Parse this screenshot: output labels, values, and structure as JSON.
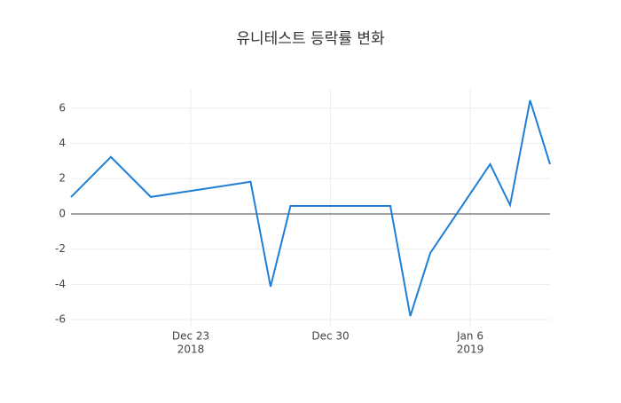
{
  "chart_data": {
    "type": "line",
    "title": "유니테스트 등락률 변화",
    "x": [
      "2018-12-17",
      "2018-12-19",
      "2018-12-21",
      "2018-12-26",
      "2018-12-27",
      "2018-12-28",
      "2019-01-02",
      "2019-01-03",
      "2019-01-04",
      "2019-01-07",
      "2019-01-08",
      "2019-01-09",
      "2019-01-10"
    ],
    "series": [
      {
        "color": "#1f7ed6",
        "values": [
          0.95,
          3.23,
          0.96,
          1.82,
          -4.13,
          0.45,
          0.45,
          -5.8,
          -2.22,
          2.82,
          0.5,
          6.45,
          2.82
        ]
      }
    ],
    "xlim": [
      "2018-12-17",
      "2019-01-10"
    ],
    "xticks": [
      {
        "value": "2018-12-23",
        "label": "Dec 23",
        "year": "2018"
      },
      {
        "value": "2018-12-30",
        "label": "Dec 30"
      },
      {
        "value": "2019-01-06",
        "label": "Jan 6",
        "year": "2019"
      }
    ],
    "ylim": [
      -6.4,
      7.1
    ],
    "yticks": [
      -6,
      -4,
      -2,
      0,
      2,
      4,
      6
    ],
    "grid": true,
    "zeroline": true
  }
}
